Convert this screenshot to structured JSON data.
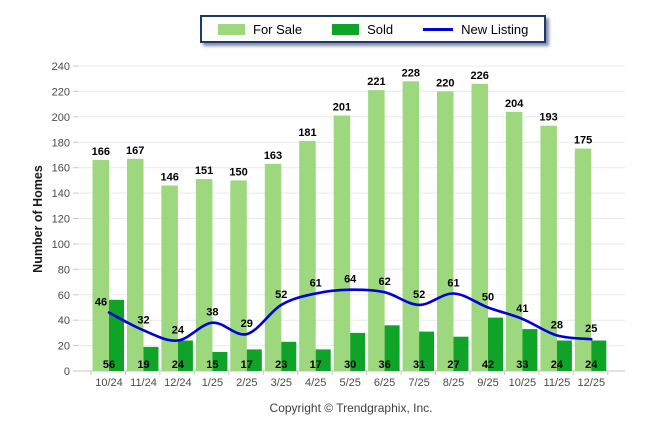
{
  "chart_data": {
    "type": "combo",
    "categories": [
      "10/24",
      "11/24",
      "12/24",
      "1/25",
      "2/25",
      "3/25",
      "4/25",
      "5/25",
      "6/25",
      "7/25",
      "8/25",
      "9/25",
      "10/25",
      "11/25",
      "12/25"
    ],
    "series": [
      {
        "name": "For Sale",
        "type": "bar",
        "color": "#9dd87e",
        "values": [
          166,
          167,
          146,
          151,
          150,
          163,
          181,
          201,
          221,
          228,
          220,
          226,
          204,
          193,
          175
        ]
      },
      {
        "name": "Sold",
        "type": "bar",
        "color": "#0fa327",
        "values": [
          56,
          19,
          24,
          15,
          17,
          23,
          17,
          30,
          36,
          31,
          27,
          42,
          33,
          24,
          24
        ]
      },
      {
        "name": "New Listing",
        "type": "line",
        "color": "#0000d8",
        "values": [
          46,
          32,
          24,
          38,
          29,
          52,
          61,
          64,
          62,
          52,
          61,
          50,
          41,
          28,
          25
        ]
      }
    ],
    "title": "",
    "xlabel": "",
    "ylabel": "Number of Homes",
    "ylim": [
      0,
      240
    ],
    "ytick_step": 20,
    "grid": "horizontal",
    "legend_position": "top",
    "colors": {
      "gridline": "#e9e9e9",
      "baseline": "#c6c6c6",
      "axis_text": "#4b4b4b",
      "data_label": "#000000",
      "legend_border": "#1d3a6b"
    }
  },
  "footer": {
    "text": "Copyright © Trendgraphix, Inc."
  }
}
